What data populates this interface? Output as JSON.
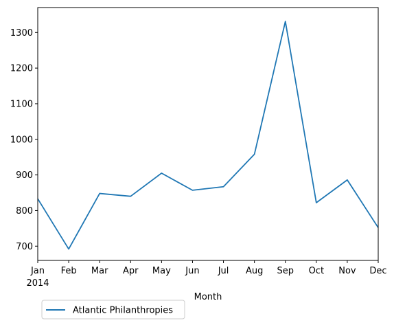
{
  "chart_data": {
    "type": "line",
    "categories": [
      "Jan",
      "Feb",
      "Mar",
      "Apr",
      "May",
      "Jun",
      "Jul",
      "Aug",
      "Sep",
      "Oct",
      "Nov",
      "Dec"
    ],
    "year_label": "2014",
    "xlabel": "Month",
    "ylabel": "",
    "ylim": [
      660,
      1370
    ],
    "yticks": [
      700,
      800,
      900,
      1000,
      1100,
      1200,
      1300
    ],
    "grid": false,
    "legend_position": "lower-left, below plot",
    "series": [
      {
        "name": "Atlantic Philanthropies",
        "color": "#1f77b4",
        "values": [
          833,
          692,
          848,
          840,
          905,
          857,
          867,
          958,
          1331,
          822,
          886,
          752
        ]
      }
    ]
  }
}
